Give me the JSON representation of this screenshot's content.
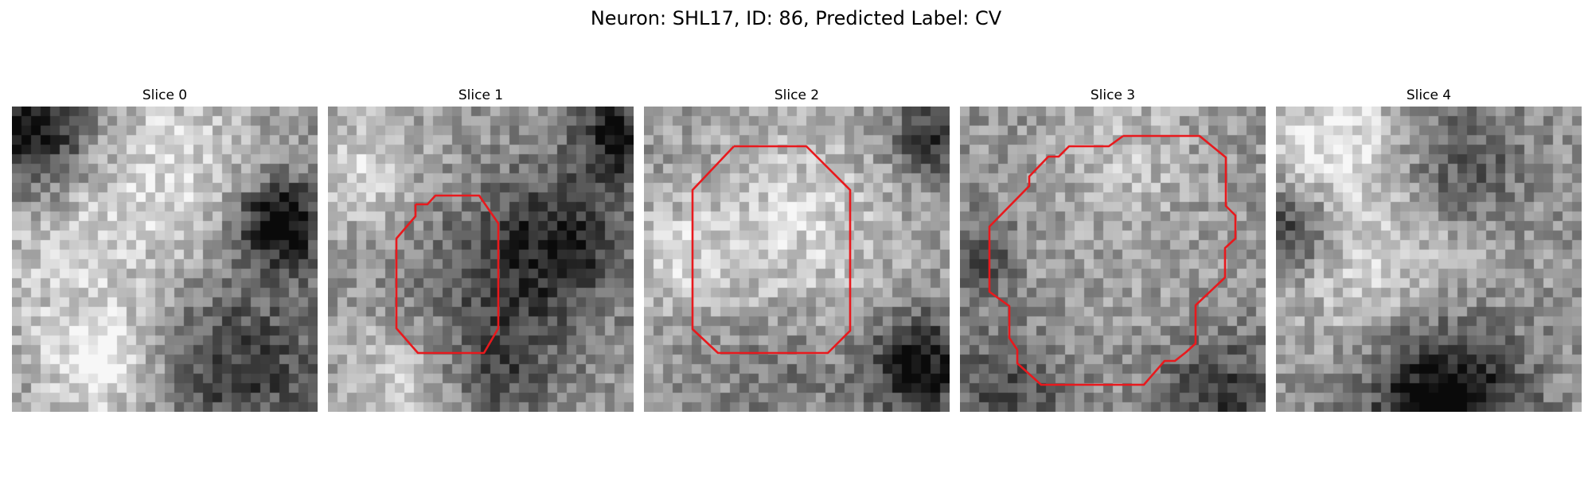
{
  "figure": {
    "title": "Neuron: SHL17, ID: 86, Predicted Label: CV"
  },
  "colors": {
    "contour": "#e8191d",
    "background": "#ffffff"
  },
  "panels": [
    {
      "title": "Slice 0",
      "has_contour": false
    },
    {
      "title": "Slice 1",
      "has_contour": true
    },
    {
      "title": "Slice 2",
      "has_contour": true
    },
    {
      "title": "Slice 3",
      "has_contour": true
    },
    {
      "title": "Slice 4",
      "has_contour": false
    }
  ]
}
